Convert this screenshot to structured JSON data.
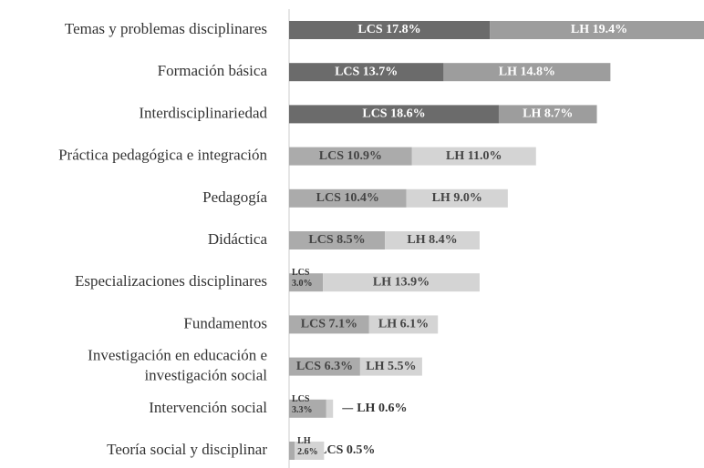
{
  "chart_data": {
    "type": "stacked-barh",
    "categories": [
      "Temas y problemas disciplinares",
      "Formación básica",
      "Interdisciplinariedad",
      "Práctica pedagógica e integración",
      "Pedagogía",
      "Didáctica",
      "Especializaciones disciplinares",
      "Fundamentos",
      "Investigación en educación e\ninvestigación social",
      "Intervención social",
      "Teoría social y disciplinar"
    ],
    "series": [
      {
        "name": "LCS",
        "colors": [
          "#6b6b6b",
          "#6b6b6b",
          "#6b6b6b",
          "#ababab",
          "#ababab",
          "#ababab",
          "#ababab",
          "#ababab",
          "#ababab",
          "#ababab",
          "#ababab"
        ],
        "values": [
          17.8,
          13.7,
          18.6,
          10.9,
          10.4,
          8.5,
          3.0,
          7.1,
          6.3,
          3.3,
          0.5
        ],
        "value_labels": [
          "LCS 17.8%",
          "LCS 13.7%",
          "LCS 18.6%",
          "LCS 10.9%",
          "LCS 10.4%",
          "LCS 8.5%",
          "LCS 3.0%",
          "LCS 7.1%",
          "LCS 6.3%",
          "LCS 3.3%",
          "LCS 0.5%"
        ]
      },
      {
        "name": "LH",
        "colors": [
          "#9d9d9d",
          "#9d9d9d",
          "#9d9d9d",
          "#d4d4d4",
          "#d4d4d4",
          "#d4d4d4",
          "#d4d4d4",
          "#d4d4d4",
          "#d4d4d4",
          "#d4d4d4",
          "#d4d4d4"
        ],
        "values": [
          19.4,
          14.8,
          8.7,
          11.0,
          9.0,
          8.4,
          13.9,
          6.1,
          5.5,
          0.6,
          2.6
        ],
        "value_labels": [
          "LH 19.4%",
          "LH 14.8%",
          "LH 8.7%",
          "LH 11.0%",
          "LH 9.0%",
          "LH 8.4%",
          "LH 13.9%",
          "LH 6.1%",
          "LH 5.5%",
          "LH 0.6%",
          "LH 2.6%"
        ]
      }
    ],
    "xlim": [
      0,
      36.8
    ]
  }
}
